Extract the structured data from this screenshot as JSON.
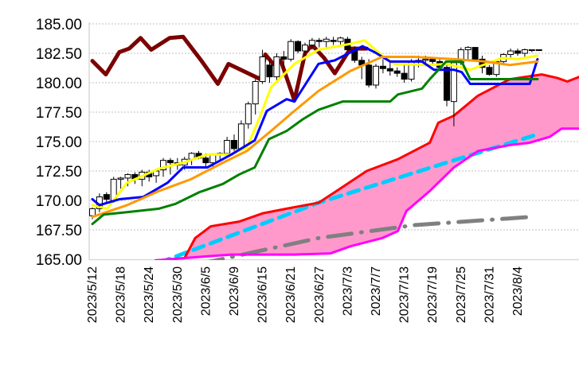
{
  "chart_data": {
    "type": "candlestick-ichimoku",
    "title": "",
    "ylim": [
      165,
      185
    ],
    "xlim": [
      -0.4,
      68.7
    ],
    "y_ticks": [
      "165.00",
      "167.50",
      "170.00",
      "172.50",
      "175.00",
      "177.50",
      "180.00",
      "182.50",
      "185.00"
    ],
    "y_tick_values": [
      165,
      167.5,
      170,
      172.5,
      175,
      177.5,
      180,
      182.5,
      185
    ],
    "x_tick_labels": [
      "2023/5/12",
      "2023/5/18",
      "2023/5/24",
      "2023/5/30",
      "2023/6/5",
      "2023/6/9",
      "2023/6/15",
      "2023/6/21",
      "2023/6/27",
      "2023/7/3",
      "2023/7/7",
      "2023/7/13",
      "2023/7/19",
      "2023/7/25",
      "2023/7/31",
      "2023/8/4"
    ],
    "x_tick_every": 4,
    "grid": "horizontal-dotted",
    "candles_ohlc": [
      [
        168.7,
        169.4,
        168.4,
        169.3
      ],
      [
        169.3,
        170.6,
        169.0,
        170.3
      ],
      [
        170.5,
        170.7,
        169.8,
        170.1
      ],
      [
        170.0,
        172.0,
        169.8,
        171.8
      ],
      [
        171.8,
        172.0,
        171.0,
        171.9
      ],
      [
        171.9,
        172.3,
        171.2,
        172.2
      ],
      [
        172.2,
        172.4,
        171.4,
        171.8
      ],
      [
        171.8,
        172.6,
        171.2,
        172.4
      ],
      [
        172.4,
        172.6,
        171.6,
        172.0
      ],
      [
        172.1,
        172.7,
        171.5,
        172.5
      ],
      [
        172.6,
        173.6,
        172.0,
        173.4
      ],
      [
        173.4,
        173.6,
        172.2,
        173.2
      ],
      [
        173.2,
        173.6,
        172.6,
        173.0
      ],
      [
        173.0,
        173.7,
        172.6,
        173.5
      ],
      [
        173.5,
        174.1,
        173.0,
        174.0
      ],
      [
        174.0,
        174.2,
        173.5,
        173.6
      ],
      [
        173.6,
        174.0,
        172.8,
        173.2
      ],
      [
        173.2,
        174.0,
        172.8,
        173.9
      ],
      [
        173.9,
        174.1,
        173.5,
        174.0
      ],
      [
        174.0,
        175.4,
        173.9,
        175.1
      ],
      [
        175.1,
        175.6,
        174.2,
        174.4
      ],
      [
        174.4,
        176.8,
        174.2,
        176.5
      ],
      [
        176.5,
        178.4,
        176.1,
        178.2
      ],
      [
        178.2,
        180.3,
        177.3,
        180.1
      ],
      [
        180.1,
        182.8,
        179.9,
        182.2
      ],
      [
        181.5,
        182.0,
        180.0,
        180.5
      ],
      [
        180.5,
        182.5,
        180.0,
        182.2
      ],
      [
        182.2,
        182.7,
        181.3,
        182.0
      ],
      [
        182.0,
        183.7,
        181.8,
        183.5
      ],
      [
        183.5,
        183.6,
        182.5,
        182.7
      ],
      [
        182.7,
        183.4,
        182.3,
        183.2
      ],
      [
        183.2,
        183.8,
        182.8,
        183.6
      ],
      [
        183.6,
        183.8,
        183.0,
        183.5
      ],
      [
        183.5,
        183.9,
        183.0,
        183.7
      ],
      [
        183.6,
        183.9,
        183.2,
        183.5
      ],
      [
        183.5,
        183.9,
        183.1,
        183.8
      ],
      [
        183.7,
        183.9,
        182.7,
        182.8
      ],
      [
        182.8,
        183.1,
        181.7,
        181.9
      ],
      [
        181.9,
        182.2,
        180.3,
        181.5
      ],
      [
        181.5,
        182.0,
        179.6,
        179.8
      ],
      [
        179.8,
        181.6,
        179.5,
        181.4
      ],
      [
        181.4,
        182.0,
        180.8,
        181.2
      ],
      [
        181.2,
        181.8,
        180.6,
        181.0
      ],
      [
        181.0,
        181.3,
        180.5,
        180.8
      ],
      [
        180.8,
        181.5,
        180.0,
        180.3
      ],
      [
        180.3,
        182.0,
        180.1,
        181.8
      ],
      [
        181.8,
        182.3,
        181.3,
        181.9
      ],
      [
        181.9,
        182.3,
        181.4,
        182.0
      ],
      [
        182.0,
        182.2,
        181.6,
        181.8
      ],
      [
        181.8,
        182.0,
        181.0,
        181.3
      ],
      [
        181.3,
        181.8,
        178.0,
        178.5
      ],
      [
        178.4,
        181.8,
        176.3,
        181.7
      ],
      [
        181.7,
        183.0,
        181.5,
        182.8
      ],
      [
        182.8,
        183.1,
        182.0,
        183.0
      ],
      [
        183.0,
        183.0,
        181.8,
        182.0
      ],
      [
        182.0,
        182.3,
        180.8,
        181.3
      ],
      [
        181.3,
        181.5,
        180.6,
        180.7
      ],
      [
        180.7,
        182.0,
        180.5,
        181.8
      ],
      [
        181.8,
        182.5,
        181.5,
        182.4
      ],
      [
        182.4,
        182.9,
        182.0,
        182.7
      ],
      [
        182.7,
        182.9,
        182.3,
        182.5
      ],
      [
        182.5,
        182.9,
        182.2,
        182.8
      ],
      [
        182.8,
        182.8,
        182.6,
        182.8
      ],
      [
        182.8,
        182.8,
        182.7,
        182.8
      ]
    ],
    "series": [
      {
        "name": "lagging-span",
        "color": "#7b0000",
        "width": 5,
        "dash": "",
        "points": [
          [
            0,
            181.85
          ],
          [
            1.9,
            180.7
          ],
          [
            3.8,
            182.6
          ],
          [
            5.2,
            182.9
          ],
          [
            6.8,
            183.8
          ],
          [
            8.3,
            182.8
          ],
          [
            10.9,
            183.8
          ],
          [
            12.8,
            183.9
          ],
          [
            15.4,
            181.85
          ],
          [
            17.7,
            179.9
          ],
          [
            19.2,
            181.6
          ],
          [
            23.7,
            180.3
          ],
          [
            24.4,
            182.4
          ],
          [
            25.5,
            181.6
          ],
          [
            26.6,
            181.85
          ],
          [
            28.5,
            178.5
          ],
          [
            30,
            182.5
          ],
          [
            31,
            183.2
          ],
          [
            32.7,
            182.1
          ],
          [
            34.2,
            180.8
          ],
          [
            36.4,
            182.9
          ],
          [
            38.7,
            182.9
          ]
        ]
      },
      {
        "name": "ma-yellow",
        "color": "#ffff00",
        "width": 3,
        "dash": "",
        "points": [
          [
            0,
            169.6
          ],
          [
            2.1,
            169.3
          ],
          [
            4.9,
            171.5
          ],
          [
            9.4,
            172.7
          ],
          [
            12.8,
            173.2
          ],
          [
            16.2,
            173.9
          ],
          [
            19.6,
            173.9
          ],
          [
            21.8,
            174.5
          ],
          [
            23.5,
            176.9
          ],
          [
            25.2,
            179.6
          ],
          [
            28.5,
            181.6
          ],
          [
            31.9,
            182.8
          ],
          [
            36.4,
            183.3
          ],
          [
            38.4,
            183.6
          ],
          [
            40.9,
            182.3
          ],
          [
            42.6,
            181.6
          ],
          [
            47.6,
            181.5
          ],
          [
            49.9,
            181.6
          ],
          [
            53.3,
            181.1
          ],
          [
            57.8,
            182.1
          ],
          [
            60,
            182
          ],
          [
            62.8,
            182.3
          ]
        ]
      },
      {
        "name": "ma-blue",
        "color": "#0000ff",
        "width": 3,
        "dash": "",
        "points": [
          [
            0,
            170.1
          ],
          [
            1,
            169.6
          ],
          [
            3.8,
            170.1
          ],
          [
            7.2,
            170.3
          ],
          [
            10.6,
            171.5
          ],
          [
            12.8,
            172.8
          ],
          [
            16.2,
            172.8
          ],
          [
            19.6,
            173.9
          ],
          [
            22.9,
            175.1
          ],
          [
            24.6,
            177.6
          ],
          [
            27.4,
            178.6
          ],
          [
            28.5,
            178.4
          ],
          [
            31.9,
            181.6
          ],
          [
            34.2,
            181.9
          ],
          [
            38.1,
            183.1
          ],
          [
            39.8,
            182.6
          ],
          [
            42,
            181.8
          ],
          [
            46.5,
            181.8
          ],
          [
            48.2,
            181.1
          ],
          [
            51,
            181.1
          ],
          [
            52.1,
            180.9
          ],
          [
            53.3,
            179.9
          ],
          [
            55,
            179.9
          ],
          [
            61.7,
            179.9
          ],
          [
            62.8,
            182
          ]
        ]
      },
      {
        "name": "ma-orange",
        "color": "#ff9900",
        "width": 3,
        "dash": "",
        "points": [
          [
            0,
            168.6
          ],
          [
            4.9,
            169.6
          ],
          [
            9.4,
            170.8
          ],
          [
            13.9,
            171.8
          ],
          [
            18.4,
            173.2
          ],
          [
            21.8,
            174.2
          ],
          [
            25.2,
            175.9
          ],
          [
            28.5,
            177.6
          ],
          [
            31.9,
            179.3
          ],
          [
            36.4,
            181
          ],
          [
            40.9,
            182.2
          ],
          [
            45.4,
            182.2
          ],
          [
            51,
            182
          ],
          [
            55.5,
            181.8
          ],
          [
            58.9,
            181.5
          ],
          [
            62.8,
            181.8
          ]
        ]
      },
      {
        "name": "ma-green",
        "color": "#008000",
        "width": 3,
        "dash": "",
        "points": [
          [
            0,
            168
          ],
          [
            1.6,
            168.8
          ],
          [
            4.9,
            169
          ],
          [
            9.4,
            169.3
          ],
          [
            11.7,
            169.7
          ],
          [
            15.1,
            170.7
          ],
          [
            18.4,
            171.4
          ],
          [
            20.7,
            172.2
          ],
          [
            22.9,
            172.8
          ],
          [
            24.9,
            175.2
          ],
          [
            27.4,
            175.9
          ],
          [
            29.7,
            176.9
          ],
          [
            31.9,
            177.7
          ],
          [
            35.3,
            178.4
          ],
          [
            42,
            178.4
          ],
          [
            43.1,
            179
          ],
          [
            46.5,
            179.5
          ],
          [
            47.6,
            180.3
          ],
          [
            49.9,
            181.8
          ],
          [
            52.1,
            181.8
          ],
          [
            53.3,
            180.3
          ],
          [
            62.8,
            180.3
          ]
        ]
      },
      {
        "name": "leading-span-a",
        "color": "#ff0000",
        "width": 3,
        "dash": "",
        "points": [
          [
            8.9,
            164.9
          ],
          [
            13,
            165.1
          ],
          [
            14.5,
            166.8
          ],
          [
            16.7,
            167.8
          ],
          [
            20.7,
            168.2
          ],
          [
            24,
            168.9
          ],
          [
            27.4,
            169.3
          ],
          [
            31.9,
            169.8
          ],
          [
            34.2,
            170.7
          ],
          [
            38.7,
            172.5
          ],
          [
            43.1,
            173.5
          ],
          [
            47.6,
            174.9
          ],
          [
            48.8,
            176.6
          ],
          [
            51,
            177.2
          ],
          [
            54.4,
            178.9
          ],
          [
            58.9,
            180.3
          ],
          [
            63.4,
            180.7
          ],
          [
            65.6,
            180.4
          ],
          [
            67,
            180.1
          ],
          [
            68.7,
            180.5
          ]
        ]
      },
      {
        "name": "leading-span-b",
        "color": "#ff00ff",
        "width": 3,
        "dash": "",
        "points": [
          [
            8.9,
            164.9
          ],
          [
            15.1,
            165.2
          ],
          [
            19.6,
            165.4
          ],
          [
            28.5,
            165.4
          ],
          [
            33.6,
            165.5
          ],
          [
            36.4,
            166.1
          ],
          [
            40.9,
            166.8
          ],
          [
            43.1,
            167.4
          ],
          [
            44.3,
            169.1
          ],
          [
            47.6,
            170.8
          ],
          [
            51,
            172.8
          ],
          [
            54.4,
            174.2
          ],
          [
            58.9,
            174.7
          ],
          [
            61.7,
            174.9
          ],
          [
            64.5,
            175.4
          ],
          [
            66.2,
            176.1
          ],
          [
            68.7,
            176.1
          ]
        ]
      },
      {
        "name": "trend-cyan",
        "color": "#00ccff",
        "width": 5,
        "dash": "14 9",
        "points": [
          [
            9.4,
            164.7
          ],
          [
            31.9,
            169.8
          ],
          [
            49.9,
            173.2
          ],
          [
            62.2,
            175.5
          ]
        ]
      },
      {
        "name": "trend-gray",
        "color": "#808080",
        "width": 5,
        "dash": "30 12 1 12",
        "points": [
          [
            15.1,
            164.6
          ],
          [
            31.9,
            166.8
          ],
          [
            45.4,
            167.9
          ],
          [
            61.9,
            168.6
          ]
        ]
      }
    ],
    "cloud": {
      "upper": "leading-span-a",
      "lower": "leading-span-b",
      "color": "#ff99cc"
    },
    "colors": {
      "bull": "#ffffff",
      "bear": "#000000",
      "grid": "#bfbfbf",
      "axis": "#d9d9d9"
    }
  }
}
